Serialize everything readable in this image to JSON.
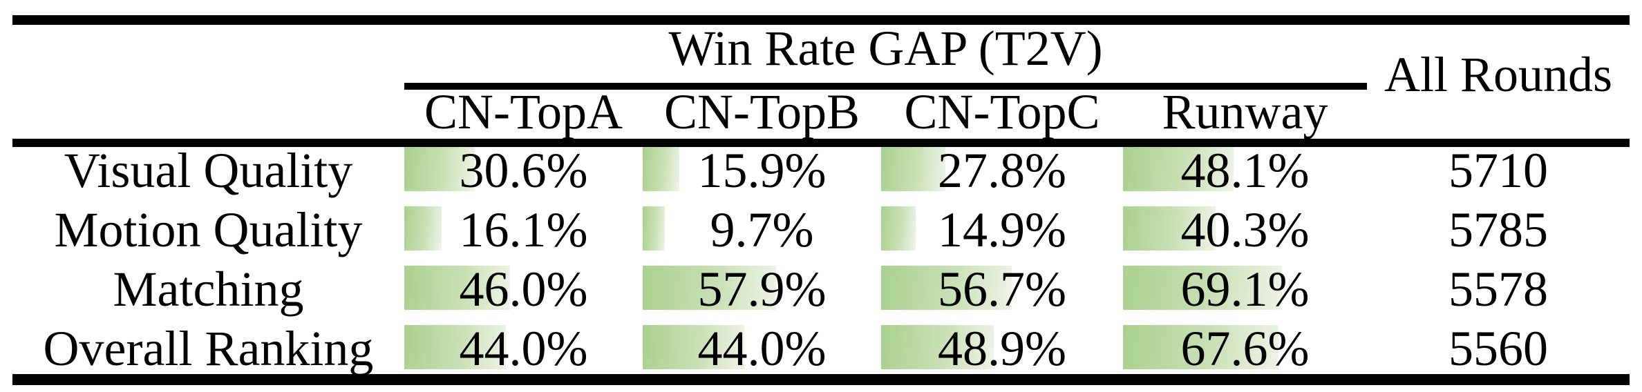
{
  "table": {
    "group_header": "Win Rate GAP (T2V)",
    "all_rounds_header": "All Rounds",
    "columns": [
      "CN-TopA",
      "CN-TopB",
      "CN-TopC",
      "Runway"
    ],
    "rows": [
      {
        "label": "Visual Quality",
        "values": [
          30.6,
          15.9,
          27.8,
          48.1
        ],
        "display": [
          "30.6%",
          "15.9%",
          "27.8%",
          "48.1%"
        ],
        "all_rounds": "5710"
      },
      {
        "label": "Motion Quality",
        "values": [
          16.1,
          9.7,
          14.9,
          40.3
        ],
        "display": [
          "16.1%",
          "9.7%",
          "14.9%",
          "40.3%"
        ],
        "all_rounds": "5785"
      },
      {
        "label": "Matching",
        "values": [
          46.0,
          57.9,
          56.7,
          69.1
        ],
        "display": [
          "46.0%",
          "57.9%",
          "56.7%",
          "69.1%"
        ],
        "all_rounds": "5578"
      },
      {
        "label": "Overall Ranking",
        "values": [
          44.0,
          44.0,
          48.9,
          67.6
        ],
        "display": [
          "44.0%",
          "44.0%",
          "48.9%",
          "67.6%"
        ],
        "all_rounds": "5560"
      }
    ],
    "bar_color": "#a9d18e",
    "bar_fade_color": "#eef4e7",
    "text_color": "#000000"
  },
  "chart_data": {
    "type": "table",
    "title": "Win Rate GAP (T2V)",
    "columns": [
      "CN-TopA",
      "CN-TopB",
      "CN-TopC",
      "Runway",
      "All Rounds"
    ],
    "row_labels": [
      "Visual Quality",
      "Motion Quality",
      "Matching",
      "Overall Ranking"
    ],
    "values": [
      [
        30.6,
        15.9,
        27.8,
        48.1,
        5710
      ],
      [
        16.1,
        9.7,
        14.9,
        40.3,
        5785
      ],
      [
        46.0,
        57.9,
        56.7,
        69.1,
        5578
      ],
      [
        44.0,
        44.0,
        48.9,
        67.6,
        5560
      ]
    ],
    "units": "gap columns in percent; All Rounds is a count",
    "bar_style": "left-anchored green-to-white gradient data bars, length proportional to percent (100% = full column width)"
  }
}
